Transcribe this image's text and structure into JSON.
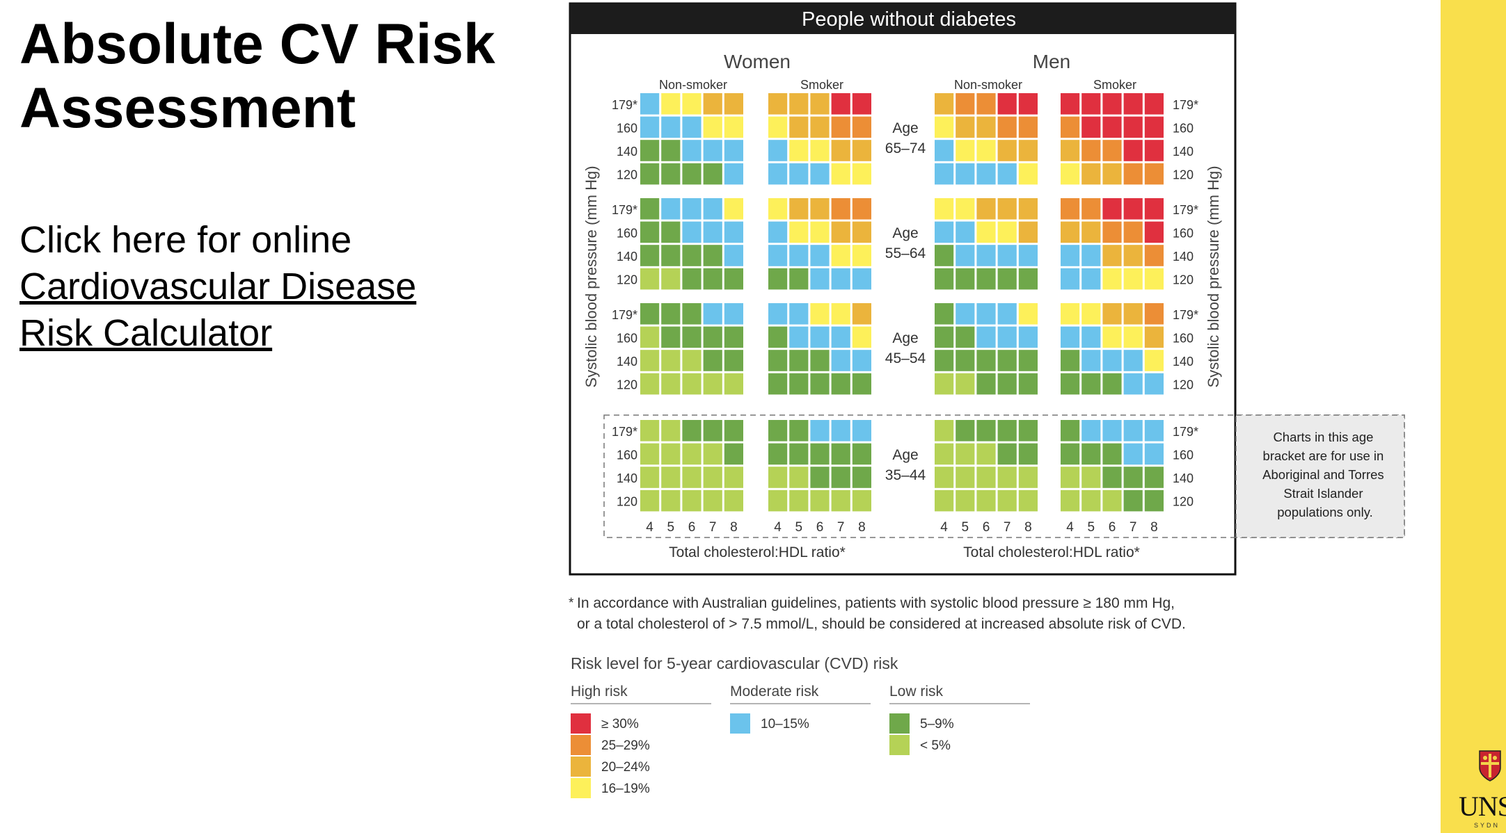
{
  "slide": {
    "title_line1": "Absolute CV Risk",
    "title_line2": "Assessment",
    "link_intro": "Click here for online",
    "link_line1": "Cardiovascular Disease",
    "link_line2": "Risk Calculator"
  },
  "logo": {
    "text": "UNS",
    "subtext": "SYDN"
  },
  "chart": {
    "header": "People without diabetes",
    "women": "Women",
    "men": "Men",
    "non_smoker": "Non-smoker",
    "smoker": "Smoker",
    "age_word": "Age",
    "ylabel": "Systolic blood pressure (mm Hg)",
    "xlabel": "Total cholesterol:HDL ratio*",
    "bp_labels": [
      "179*",
      "160",
      "140",
      "120"
    ],
    "ratio_labels": [
      "4",
      "5",
      "6",
      "7",
      "8"
    ],
    "note": [
      "Charts in this age",
      "bracket are for use in",
      "Aboriginal and Torres",
      "Strait Islander",
      "populations only."
    ]
  },
  "footnote": {
    "line1": "In accordance with Australian guidelines, patients with systolic blood pressure ≥ 180 mm Hg,",
    "line2": "or a total cholesterol of > 7.5 mmol/L, should be considered at increased absolute risk of CVD.",
    "star": "*"
  },
  "legend": {
    "title": "Risk level for 5-year cardiovascular (CVD) risk",
    "groups": [
      {
        "name": "High risk",
        "items": [
          {
            "label": "≥ 30%",
            "color": "#e0303f"
          },
          {
            "label": "25–29%",
            "color": "#ec8e36"
          },
          {
            "label": "20–24%",
            "color": "#ebb43c"
          },
          {
            "label": "16–19%",
            "color": "#fdf05a"
          }
        ]
      },
      {
        "name": "Moderate risk",
        "items": [
          {
            "label": "10–15%",
            "color": "#6bc3ec"
          }
        ]
      },
      {
        "name": "Low risk",
        "items": [
          {
            "label": "5–9%",
            "color": "#6fa84a"
          },
          {
            "label": "< 5%",
            "color": "#b5d256"
          }
        ]
      }
    ]
  },
  "chart_data": {
    "type": "heatmap",
    "title": "People without diabetes",
    "xlabel": "Total cholesterol:HDL ratio*",
    "ylabel": "Systolic blood pressure (mm Hg)",
    "x": [
      4,
      5,
      6,
      7,
      8
    ],
    "y": [
      "179*",
      "160",
      "140",
      "120"
    ],
    "colors": {
      "R": "#e0303f",
      "O": "#ec8e36",
      "A": "#ebb43c",
      "Y": "#fdf05a",
      "B": "#6bc3ec",
      "G": "#6fa84a",
      "L": "#b5d256"
    },
    "panels": [
      {
        "age": "65–74",
        "rows": {
          "women_non_smoker": [
            "BYYAA",
            "BBBYY",
            "GGBBB",
            "GGGGB"
          ],
          "women_smoker": [
            "AAARR",
            "YAAOO",
            "BYYAA",
            "BBBYY"
          ],
          "men_non_smoker": [
            "AOORR",
            "YAAOO",
            "BYYAA",
            "BBBBY"
          ],
          "men_smoker": [
            "RRRRR",
            "ORRRR",
            "AOORR",
            "YAAOO"
          ]
        }
      },
      {
        "age": "55–64",
        "rows": {
          "women_non_smoker": [
            "GBBBY",
            "GGBBB",
            "GGGGB",
            "LLGGG"
          ],
          "women_smoker": [
            "YAAOO",
            "BYYAA",
            "BBBYY",
            "GGBBB"
          ],
          "men_non_smoker": [
            "YYAAA",
            "BBYYA",
            "GBBBB",
            "GGGGG"
          ],
          "men_smoker": [
            "OORRR",
            "AAOOR",
            "BBAAO",
            "BBYYY"
          ]
        }
      },
      {
        "age": "45–54",
        "rows": {
          "women_non_smoker": [
            "GGGBB",
            "LGGGG",
            "LLLGG",
            "LLLLL"
          ],
          "women_smoker": [
            "BBYYA",
            "GBBBY",
            "GGGBB",
            "GGGGG"
          ],
          "men_non_smoker": [
            "GBBBY",
            "GGBBB",
            "GGGGG",
            "LLGGG"
          ],
          "men_smoker": [
            "YYAAO",
            "BBYYA",
            "GBBBY",
            "GGGBB"
          ]
        }
      },
      {
        "age": "35–44",
        "rows": {
          "women_non_smoker": [
            "LLGGG",
            "LLLLG",
            "LLLLL",
            "LLLLL"
          ],
          "women_smoker": [
            "GGBBB",
            "GGGGG",
            "LLGGG",
            "LLLLL"
          ],
          "men_non_smoker": [
            "LGGGG",
            "LLLGG",
            "LLLLL",
            "LLLLL"
          ],
          "men_smoker": [
            "GBBBB",
            "GGGBB",
            "LLGGG",
            "LLLGG"
          ]
        }
      }
    ]
  }
}
